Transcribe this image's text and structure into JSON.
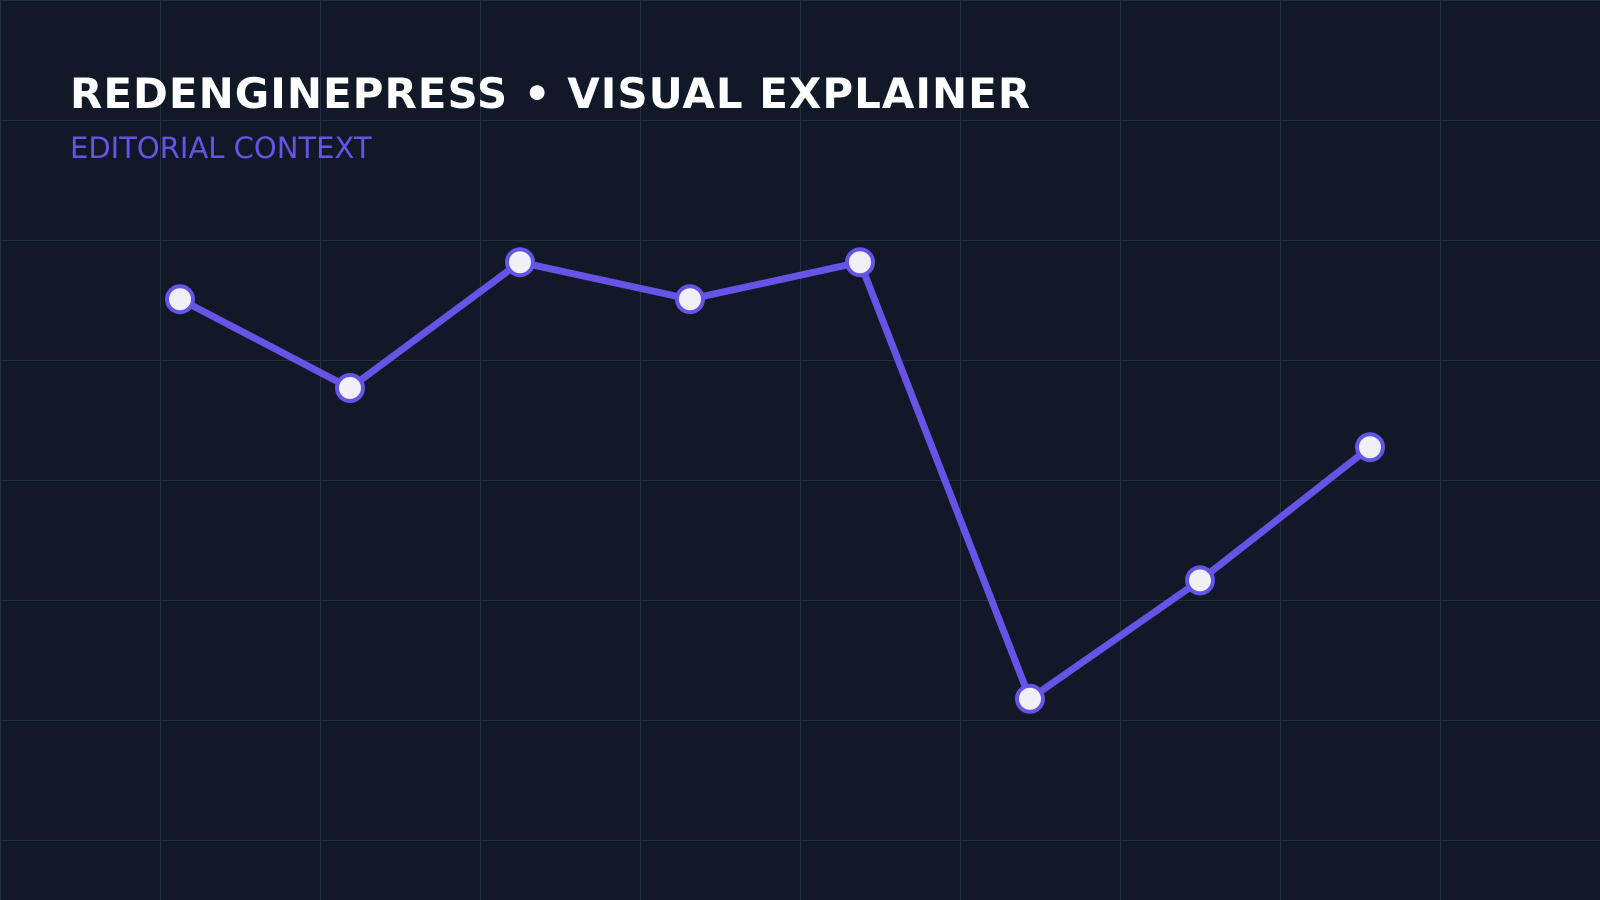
{
  "header": {
    "title": "REDENGINEPRESS • VISUAL EXPLAINER",
    "subtitle": "EDITORIAL CONTEXT"
  },
  "colors": {
    "background": "#111827",
    "grid": "#263041",
    "line": "#6554e5",
    "marker_fill": "#f1f0f7",
    "title": "#ffffff",
    "subtitle": "#6554e5"
  },
  "chart_data": {
    "type": "line",
    "title": "",
    "xlabel": "",
    "ylabel": "",
    "grid": true,
    "x": [
      1,
      2,
      3,
      4,
      5,
      6,
      7,
      8
    ],
    "series": [
      {
        "values": [
          72,
          60,
          77,
          72,
          77,
          18,
          34,
          52
        ]
      }
    ],
    "ylim": [
      0,
      100
    ]
  }
}
